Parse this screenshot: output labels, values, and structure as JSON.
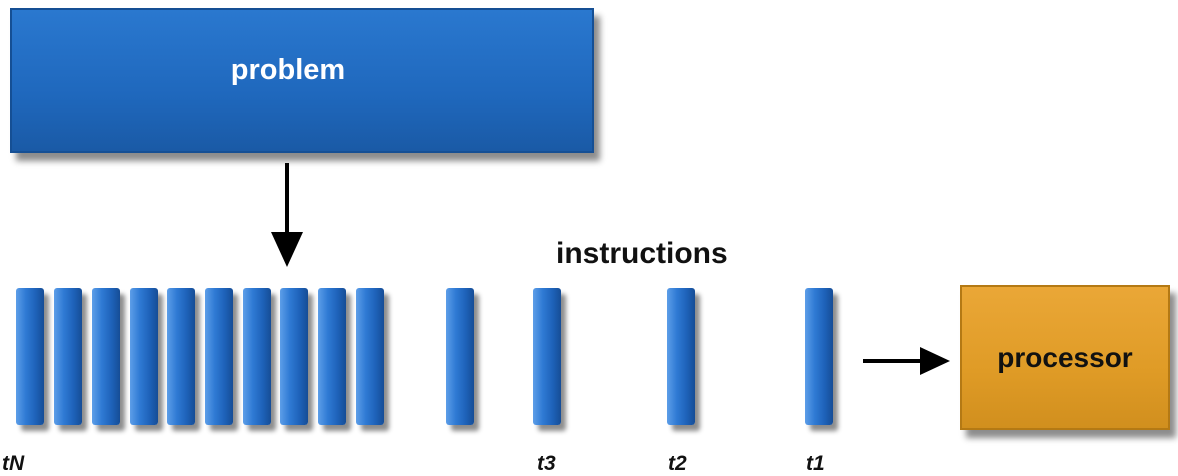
{
  "problem": {
    "label": "problem"
  },
  "instructions": {
    "label": "instructions"
  },
  "processor": {
    "label": "processor"
  },
  "time_labels": {
    "tN": "tN",
    "t3": "t3",
    "t2": "t2",
    "t1": "t1"
  },
  "colors": {
    "instruction_blue": "#1f68bd",
    "processor_orange": "#df9b26"
  }
}
